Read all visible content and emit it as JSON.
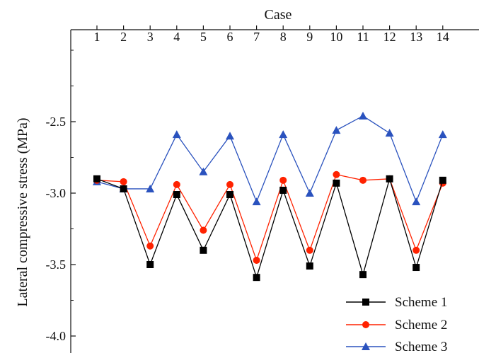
{
  "chart_data": {
    "type": "line",
    "xlabel": "Case",
    "ylabel": "Lateral compressive stress (MPa)",
    "x": [
      1,
      2,
      3,
      4,
      5,
      6,
      7,
      8,
      9,
      10,
      11,
      12,
      13,
      14
    ],
    "x_tick_labels": [
      "1",
      "2",
      "3",
      "4",
      "5",
      "6",
      "7",
      "8",
      "9",
      "10",
      "11",
      "12",
      "13",
      "14"
    ],
    "x_axis_position": "top",
    "ylim": [
      -4.0,
      -1.9
    ],
    "y_ticks": [
      -4.0,
      -3.5,
      -3.0,
      -2.5
    ],
    "y_tick_labels": [
      "-4.0",
      "-3.5",
      "-3.0",
      "-2.5"
    ],
    "grid": false,
    "legend_position": "bottom-right",
    "series": [
      {
        "name": "Scheme 1",
        "color": "#000000",
        "marker": "square",
        "values": [
          -2.9,
          -2.97,
          -3.5,
          -3.01,
          -3.4,
          -3.01,
          -3.59,
          -2.98,
          -3.51,
          -2.93,
          -3.57,
          -2.9,
          -3.52,
          -2.91
        ]
      },
      {
        "name": "Scheme 2",
        "color": "#ff2200",
        "marker": "circle",
        "values": [
          -2.91,
          -2.92,
          -3.37,
          -2.94,
          -3.26,
          -2.94,
          -3.47,
          -2.91,
          -3.4,
          -2.87,
          -2.91,
          -2.9,
          -3.4,
          -2.93
        ]
      },
      {
        "name": "Scheme 3",
        "color": "#2a52be",
        "marker": "triangle",
        "values": [
          -2.92,
          -2.97,
          -2.97,
          -2.59,
          -2.85,
          -2.6,
          -3.06,
          -2.59,
          -3.0,
          -2.56,
          -2.46,
          -2.58,
          -3.06,
          -2.59
        ]
      }
    ]
  }
}
